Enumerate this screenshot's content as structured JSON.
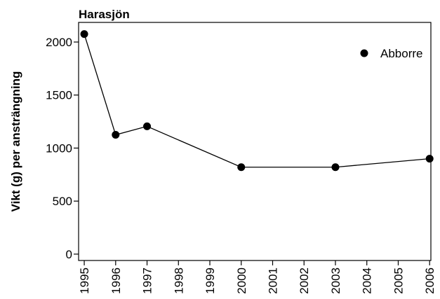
{
  "chart_data": {
    "type": "line",
    "title": "Harasjön",
    "ylabel": "Vikt (g) per ansträngning",
    "x": [
      1995,
      1996,
      1997,
      2000,
      2003,
      2006
    ],
    "series": [
      {
        "name": "Abborre",
        "color": "#000000",
        "values": [
          2075,
          1125,
          1205,
          820,
          820,
          900
        ]
      }
    ],
    "xlim": [
      1994.82,
      2006.04
    ],
    "xticks": [
      1995,
      1996,
      1997,
      1998,
      1999,
      2000,
      2001,
      2002,
      2003,
      2004,
      2005,
      2006
    ],
    "ylim": [
      -60,
      2185
    ],
    "yticks": [
      0,
      500,
      1000,
      1500,
      2000
    ],
    "legend": "upper right"
  }
}
